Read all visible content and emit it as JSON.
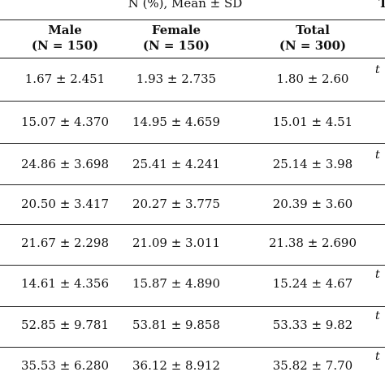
{
  "table": {
    "super_header": "N (%), Mean ± SD",
    "super_header_edge": "T",
    "columns": [
      {
        "name": "Male",
        "n": "(N = 150)"
      },
      {
        "name": "Female",
        "n": "(N = 150)"
      },
      {
        "name": "Total",
        "n": "(N = 300)"
      }
    ],
    "rows": [
      {
        "male": "1.67 ± 2.451",
        "female": "1.93 ± 2.735",
        "total": "1.80 ± 2.60",
        "edge": "t"
      },
      {
        "male": "15.07 ± 4.370",
        "female": "14.95 ± 4.659",
        "total": "15.01 ± 4.51",
        "edge": ""
      },
      {
        "male": "24.86 ± 3.698",
        "female": "25.41 ± 4.241",
        "total": "25.14 ± 3.98",
        "edge": "t"
      },
      {
        "male": "20.50 ± 3.417",
        "female": "20.27 ± 3.775",
        "total": "20.39 ± 3.60",
        "edge": ""
      },
      {
        "male": "21.67 ± 2.298",
        "female": "21.09 ± 3.011",
        "total": "21.38 ± 2.690",
        "edge": ""
      },
      {
        "male": "14.61 ± 4.356",
        "female": "15.87 ± 4.890",
        "total": "15.24 ± 4.67",
        "edge": "t"
      },
      {
        "male": "52.85 ± 9.781",
        "female": "53.81 ± 9.858",
        "total": "53.33 ± 9.82",
        "edge": "t"
      },
      {
        "male": "35.53 ± 6.280",
        "female": "36.12 ± 8.912",
        "total": "35.82 ± 7.70",
        "edge": "t"
      }
    ]
  }
}
